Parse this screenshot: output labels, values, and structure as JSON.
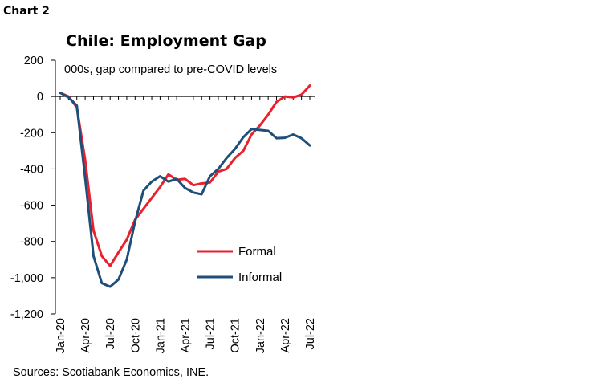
{
  "page": {
    "label": "Chart 2",
    "source": "Sources: Scotiabank Economics, INE."
  },
  "chart_data": {
    "type": "line",
    "title": "Chile: Employment Gap",
    "subtitle": "000s, gap compared to pre-COVID levels",
    "xlabel": "",
    "ylabel": "",
    "ylim": [
      -1200,
      200
    ],
    "yticks": [
      200,
      0,
      -200,
      -400,
      -600,
      -800,
      -1000,
      -1200
    ],
    "ytick_labels": [
      "200",
      "0",
      "-200",
      "-400",
      "-600",
      "-800",
      "-1,000",
      "-1,200"
    ],
    "x": [
      "Jan-20",
      "Feb-20",
      "Mar-20",
      "Apr-20",
      "May-20",
      "Jun-20",
      "Jul-20",
      "Aug-20",
      "Sep-20",
      "Oct-20",
      "Nov-20",
      "Dec-20",
      "Jan-21",
      "Feb-21",
      "Mar-21",
      "Apr-21",
      "May-21",
      "Jun-21",
      "Jul-21",
      "Aug-21",
      "Sep-21",
      "Oct-21",
      "Nov-21",
      "Dec-21",
      "Jan-22",
      "Feb-22",
      "Mar-22",
      "Apr-22",
      "May-22",
      "Jun-22",
      "Jul-22"
    ],
    "xtick_labels": [
      "Jan-20",
      "Apr-20",
      "Jul-20",
      "Oct-20",
      "Jan-21",
      "Apr-21",
      "Jul-21",
      "Oct-21",
      "Jan-22",
      "Apr-22",
      "Jul-22"
    ],
    "legend_position": "lower-right",
    "grid": false,
    "series": [
      {
        "name": "Formal",
        "color": "#e8212d",
        "values": [
          20,
          0,
          -60,
          -350,
          -740,
          -880,
          -935,
          -860,
          -790,
          -680,
          -620,
          -560,
          -500,
          -430,
          -460,
          -455,
          -490,
          -480,
          -475,
          -415,
          -400,
          -340,
          -300,
          -210,
          -160,
          -100,
          -30,
          0,
          -5,
          10,
          60
        ]
      },
      {
        "name": "Informal",
        "color": "#1f4e79",
        "values": [
          20,
          -5,
          -50,
          -450,
          -880,
          -1030,
          -1050,
          -1010,
          -900,
          -690,
          -520,
          -470,
          -440,
          -470,
          -455,
          -505,
          -530,
          -540,
          -440,
          -400,
          -340,
          -290,
          -225,
          -180,
          -185,
          -190,
          -230,
          -228,
          -210,
          -230,
          -270
        ]
      }
    ]
  }
}
